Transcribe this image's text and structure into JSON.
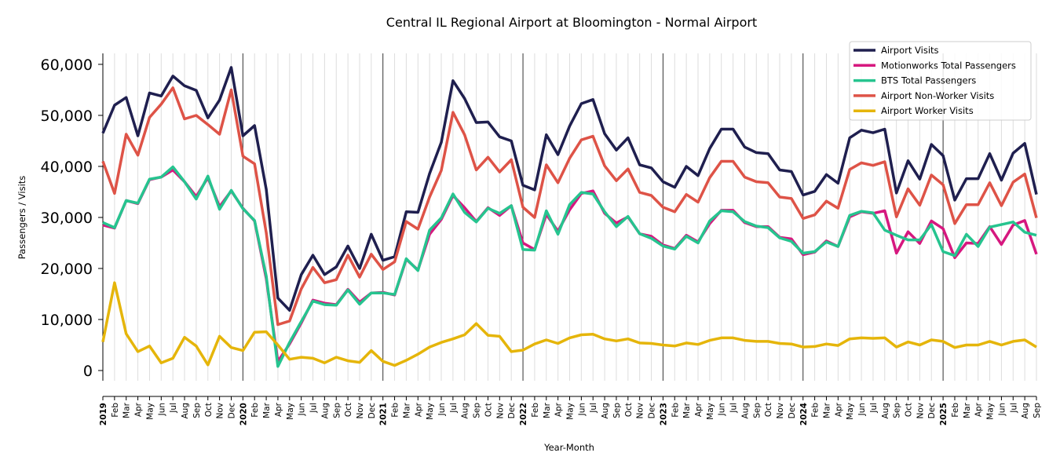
{
  "chart_data": {
    "type": "line",
    "title": "Central IL Regional Airport at Bloomington - Normal Airport",
    "xlabel": "Year-Month",
    "ylabel": "Passengers / Visits",
    "ylim": [
      -2000,
      62150
    ],
    "yticks": [
      0,
      10000,
      20000,
      30000,
      40000,
      50000,
      60000
    ],
    "ytick_labels": [
      "0",
      "10,000",
      "20,000",
      "30,000",
      "40,000",
      "50,000",
      "60,000"
    ],
    "years": [
      "2019",
      "2020",
      "2021",
      "2022",
      "2023",
      "2024",
      "2025"
    ],
    "months": [
      "Jan",
      "Feb",
      "Mar",
      "Apr",
      "May",
      "Jun",
      "Jul",
      "Aug",
      "Sep",
      "Oct",
      "Nov",
      "Dec"
    ],
    "n_months": 81,
    "legend_position": "top-right",
    "grid": "vertical monthly, dark year dividers",
    "series": [
      {
        "name": "Airport Visits",
        "color": "#1f1f4f",
        "values": [
          46500,
          52000,
          53500,
          46000,
          54400,
          53800,
          57700,
          55800,
          54900,
          49500,
          53000,
          59400,
          46000,
          48000,
          35500,
          14200,
          11800,
          18800,
          22600,
          18800,
          20300,
          24400,
          20000,
          26700,
          21600,
          22300,
          31100,
          31000,
          38600,
          44700,
          56800,
          53300,
          48600,
          48700,
          45800,
          45000,
          36300,
          35400,
          46200,
          42300,
          47900,
          52300,
          53100,
          46400,
          43200,
          45600,
          40300,
          39700,
          37000,
          35900,
          40000,
          38200,
          43500,
          47300,
          47300,
          43800,
          42700,
          42500,
          39300,
          39000,
          34400,
          35100,
          38400,
          36700,
          45600,
          47100,
          46600,
          47300,
          34800,
          41100,
          37500,
          44300,
          42100,
          33400,
          37600,
          37600,
          42500,
          37300,
          42600,
          44500,
          34500
        ]
      },
      {
        "name": "Motionworks Total Passengers",
        "color": "#d6187f",
        "values": [
          28500,
          27900,
          33300,
          32700,
          37400,
          37900,
          39300,
          37000,
          34100,
          37800,
          32100,
          35200,
          31800,
          29300,
          18000,
          1800,
          5200,
          9300,
          13800,
          13200,
          12900,
          15900,
          13400,
          15200,
          15300,
          14800,
          21800,
          19700,
          26700,
          29600,
          34300,
          31900,
          29200,
          31900,
          30400,
          32300,
          25000,
          23700,
          30600,
          27300,
          31500,
          34700,
          35200,
          30800,
          28900,
          30100,
          26800,
          26300,
          24600,
          23900,
          26500,
          25200,
          28800,
          31400,
          31400,
          29000,
          28200,
          28200,
          26100,
          25800,
          22700,
          23200,
          25400,
          24300,
          30100,
          31100,
          30800,
          31300,
          23000,
          27200,
          24900,
          29300,
          27800,
          22100,
          25000,
          24900,
          28200,
          24700,
          28500,
          29400,
          22800
        ]
      },
      {
        "name": "BTS Total Passengers",
        "color": "#26c48f",
        "values": [
          29000,
          28000,
          33300,
          32800,
          37500,
          37900,
          39900,
          37000,
          33600,
          38100,
          31600,
          35300,
          31700,
          29400,
          18500,
          800,
          5500,
          9600,
          13600,
          12900,
          12800,
          15800,
          13000,
          15200,
          15200,
          14900,
          21900,
          19600,
          27500,
          29900,
          34600,
          31000,
          29100,
          31800,
          30800,
          32300,
          23700,
          23600,
          31300,
          26700,
          32500,
          34900,
          34600,
          31100,
          28200,
          30200,
          26800,
          25900,
          24400,
          23800,
          26300,
          25000,
          29300,
          31300,
          31100,
          29200,
          28300,
          28000,
          26000,
          25300,
          23000,
          23300,
          25200,
          24300,
          30400,
          31200,
          30900,
          27500,
          26500,
          25600,
          25600,
          28600,
          23300,
          22500,
          26700,
          24300,
          28100,
          28600,
          29100,
          27100,
          26500
        ]
      },
      {
        "name": "Airport Non-Worker Visits",
        "color": "#de5347",
        "values": [
          41000,
          34700,
          46300,
          42200,
          49600,
          52200,
          55400,
          49300,
          50000,
          48200,
          46300,
          55000,
          42000,
          40500,
          27000,
          9000,
          9700,
          16000,
          20200,
          17200,
          17800,
          22600,
          18300,
          22800,
          19800,
          21300,
          29200,
          27700,
          34000,
          39200,
          50600,
          46200,
          39300,
          41800,
          38900,
          41300,
          32000,
          30000,
          40300,
          36800,
          41600,
          45200,
          45900,
          40100,
          37200,
          39500,
          34900,
          34300,
          32000,
          31100,
          34500,
          33000,
          37800,
          41000,
          41000,
          37900,
          37000,
          36800,
          34000,
          33700,
          29800,
          30500,
          33200,
          31800,
          39400,
          40700,
          40200,
          40900,
          30100,
          35600,
          32400,
          38300,
          36400,
          28800,
          32500,
          32500,
          36800,
          32300,
          36900,
          38500,
          29900
        ]
      },
      {
        "name": "Airport Worker Visits",
        "color": "#e5b50a",
        "values": [
          5600,
          17200,
          7200,
          3700,
          4800,
          1500,
          2400,
          6500,
          4800,
          1100,
          6700,
          4500,
          3900,
          7500,
          7600,
          5000,
          2200,
          2600,
          2400,
          1500,
          2600,
          1900,
          1600,
          3900,
          1800,
          1000,
          2000,
          3200,
          4600,
          5500,
          6200,
          7000,
          9200,
          6900,
          6700,
          3700,
          4000,
          5200,
          6000,
          5300,
          6400,
          7000,
          7100,
          6200,
          5800,
          6200,
          5400,
          5300,
          5000,
          4800,
          5400,
          5100,
          5900,
          6400,
          6400,
          5900,
          5700,
          5700,
          5300,
          5200,
          4600,
          4700,
          5200,
          4900,
          6200,
          6400,
          6300,
          6400,
          4600,
          5600,
          5000,
          6000,
          5700,
          4500,
          5000,
          5000,
          5700,
          5000,
          5700,
          6000,
          4600
        ]
      }
    ]
  }
}
